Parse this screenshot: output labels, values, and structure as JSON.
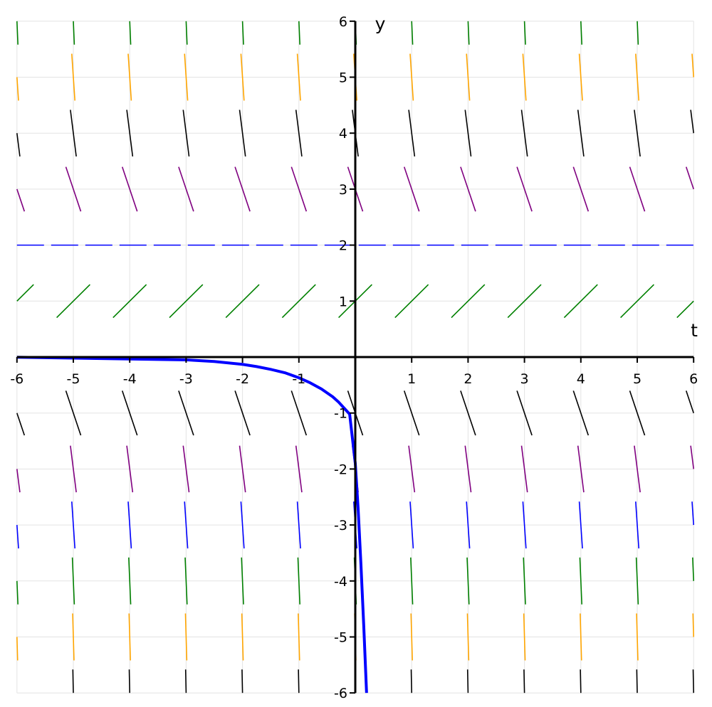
{
  "chart_data": {
    "type": "slope_field",
    "title": "",
    "xlabel": "t",
    "ylabel": "y",
    "xlim": [
      -6,
      6
    ],
    "ylim": [
      -6,
      6
    ],
    "grid": true,
    "x_ticks": [
      -6,
      -5,
      -4,
      -3,
      -2,
      -1,
      1,
      2,
      3,
      4,
      5,
      6
    ],
    "y_ticks": [
      -6,
      -5,
      -4,
      -3,
      -2,
      -1,
      1,
      2,
      3,
      4,
      5,
      6
    ],
    "x_tick_labels": [
      "-6",
      "-5",
      "-4",
      "-3",
      "-2",
      "-1",
      "1",
      "2",
      "3",
      "4",
      "5",
      "6"
    ],
    "y_tick_labels": [
      "-6",
      "-5",
      "-4",
      "-3",
      "-2",
      "-1",
      "1",
      "2",
      "3",
      "4",
      "5",
      "6"
    ],
    "slope_field": {
      "x_positions": [
        -6,
        -5,
        -4,
        -3,
        -2,
        -1,
        0,
        1,
        2,
        3,
        4,
        5,
        6
      ],
      "rows": [
        {
          "y": 6,
          "slope": -24,
          "color": "#008000"
        },
        {
          "y": 5,
          "slope": -15,
          "color": "#ffa500"
        },
        {
          "y": 4,
          "slope": -8,
          "color": "#000000"
        },
        {
          "y": 3,
          "slope": -3,
          "color": "#800080"
        },
        {
          "y": 1,
          "slope": 1,
          "color": "#008000"
        },
        {
          "y": -1,
          "slope": -3,
          "color": "#000000"
        },
        {
          "y": -2,
          "slope": -8,
          "color": "#800080"
        },
        {
          "y": -3,
          "slope": -15,
          "color": "#0000ff"
        },
        {
          "y": -4,
          "slope": -24,
          "color": "#008000"
        },
        {
          "y": -5,
          "slope": -35,
          "color": "#ffa500"
        },
        {
          "y": -6,
          "slope": -48,
          "color": "#000000"
        }
      ]
    },
    "equilibrium": {
      "y": 2,
      "color": "#0000ff",
      "style": "dashed"
    },
    "solution_curve": {
      "color": "#0000ff",
      "x": [
        -6,
        -3,
        -2.5,
        -2,
        -1.75,
        -1.5,
        -1.25,
        -1,
        -0.8,
        -0.6,
        -0.4,
        -0.3,
        -0.2,
        -0.1,
        0,
        0.05,
        0.1,
        0.15,
        0.2
      ],
      "y": [
        -0.003,
        -0.05,
        -0.08,
        -0.13,
        -0.17,
        -0.22,
        -0.28,
        -0.37,
        -0.46,
        -0.57,
        -0.71,
        -0.8,
        -0.91,
        -1.02,
        -1.9,
        -2.7,
        -3.7,
        -4.8,
        -6.0
      ]
    }
  }
}
